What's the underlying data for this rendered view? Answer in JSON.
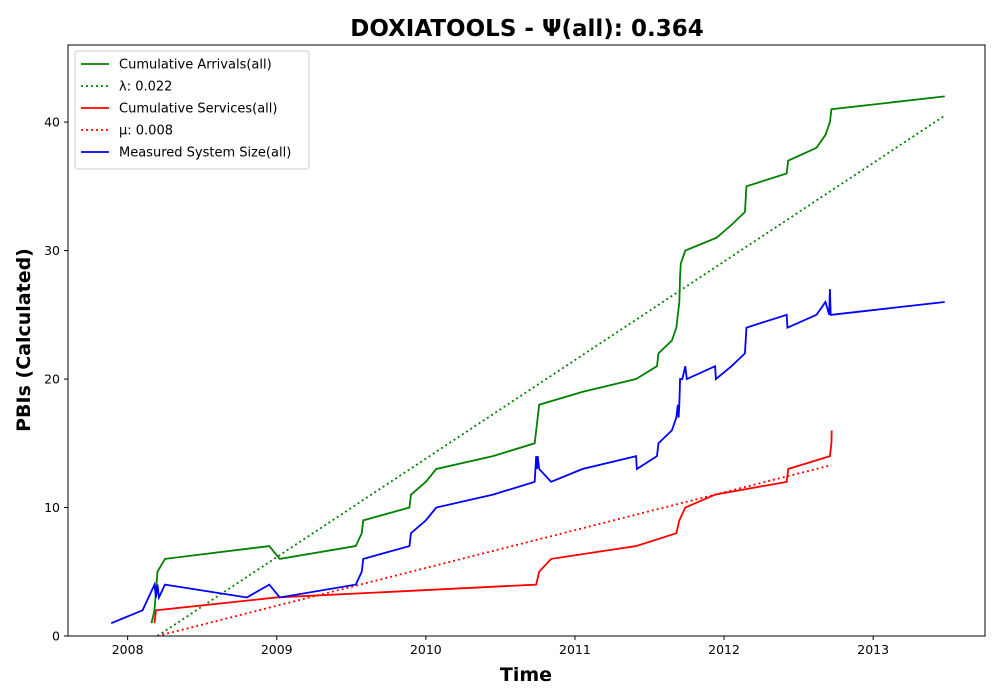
{
  "chart_data": {
    "type": "line",
    "title": "DOXIATOOLS -  Ψ(all): 0.364",
    "xlabel": "Time",
    "ylabel": "PBIs (Calculated)",
    "xlim": [
      2007.6,
      2013.75
    ],
    "ylim": [
      0,
      46
    ],
    "x_ticks": [
      2008,
      2009,
      2010,
      2011,
      2012,
      2013
    ],
    "y_ticks": [
      0,
      10,
      20,
      30,
      40
    ],
    "grid": false,
    "legend_position": "top-left",
    "series": [
      {
        "name": "Cumulative Arrivals(all)",
        "color": "#008000",
        "style": "solid",
        "points": [
          [
            2008.16,
            1
          ],
          [
            2008.18,
            2
          ],
          [
            2008.2,
            5
          ],
          [
            2008.25,
            6
          ],
          [
            2008.95,
            7
          ],
          [
            2009.02,
            6
          ],
          [
            2009.53,
            7
          ],
          [
            2009.57,
            8
          ],
          [
            2009.58,
            9
          ],
          [
            2009.89,
            10
          ],
          [
            2009.9,
            11
          ],
          [
            2010.0,
            12
          ],
          [
            2010.07,
            13
          ],
          [
            2010.45,
            14
          ],
          [
            2010.73,
            15
          ],
          [
            2010.74,
            16
          ],
          [
            2010.75,
            17
          ],
          [
            2010.76,
            18
          ],
          [
            2011.05,
            19
          ],
          [
            2011.41,
            20
          ],
          [
            2011.55,
            21
          ],
          [
            2011.56,
            22
          ],
          [
            2011.65,
            23
          ],
          [
            2011.68,
            24
          ],
          [
            2011.69,
            25
          ],
          [
            2011.7,
            26
          ],
          [
            2011.705,
            28
          ],
          [
            2011.71,
            29
          ],
          [
            2011.74,
            30
          ],
          [
            2011.95,
            31
          ],
          [
            2012.05,
            32
          ],
          [
            2012.14,
            33
          ],
          [
            2012.15,
            35
          ],
          [
            2012.42,
            36
          ],
          [
            2012.43,
            37
          ],
          [
            2012.62,
            38
          ],
          [
            2012.68,
            39
          ],
          [
            2012.71,
            40
          ],
          [
            2012.72,
            41
          ],
          [
            2013.48,
            42
          ]
        ]
      },
      {
        "name": "λ: 0.022",
        "color": "#008000",
        "style": "dotted",
        "points": [
          [
            2008.2,
            0
          ],
          [
            2013.48,
            40.5
          ]
        ]
      },
      {
        "name": "Cumulative Services(all)",
        "color": "#ff0000",
        "style": "solid",
        "points": [
          [
            2008.18,
            1
          ],
          [
            2008.19,
            2
          ],
          [
            2009.0,
            3
          ],
          [
            2010.74,
            4
          ],
          [
            2010.76,
            5
          ],
          [
            2010.84,
            6
          ],
          [
            2011.41,
            7
          ],
          [
            2011.68,
            8
          ],
          [
            2011.7,
            9
          ],
          [
            2011.74,
            10
          ],
          [
            2011.94,
            11
          ],
          [
            2012.42,
            12
          ],
          [
            2012.43,
            13
          ],
          [
            2012.71,
            14
          ],
          [
            2012.72,
            15
          ],
          [
            2012.722,
            16
          ]
        ]
      },
      {
        "name": "μ: 0.008",
        "color": "#ff0000",
        "style": "dotted",
        "points": [
          [
            2008.2,
            0
          ],
          [
            2012.72,
            13.3
          ]
        ]
      },
      {
        "name": "Measured System Size(all)",
        "color": "#0000ff",
        "style": "solid",
        "points": [
          [
            2007.89,
            1
          ],
          [
            2008.1,
            2
          ],
          [
            2008.18,
            4
          ],
          [
            2008.19,
            3
          ],
          [
            2008.2,
            4
          ],
          [
            2008.21,
            3
          ],
          [
            2008.25,
            4
          ],
          [
            2008.8,
            3
          ],
          [
            2008.95,
            4
          ],
          [
            2009.02,
            3
          ],
          [
            2009.53,
            4
          ],
          [
            2009.57,
            5
          ],
          [
            2009.58,
            6
          ],
          [
            2009.89,
            7
          ],
          [
            2009.9,
            8
          ],
          [
            2010.0,
            9
          ],
          [
            2010.07,
            10
          ],
          [
            2010.45,
            11
          ],
          [
            2010.73,
            12
          ],
          [
            2010.74,
            14
          ],
          [
            2010.745,
            13
          ],
          [
            2010.75,
            14
          ],
          [
            2010.76,
            13
          ],
          [
            2010.84,
            12
          ],
          [
            2011.05,
            13
          ],
          [
            2011.41,
            14
          ],
          [
            2011.415,
            13
          ],
          [
            2011.55,
            14
          ],
          [
            2011.56,
            15
          ],
          [
            2011.65,
            16
          ],
          [
            2011.68,
            17
          ],
          [
            2011.69,
            18
          ],
          [
            2011.695,
            17
          ],
          [
            2011.7,
            18
          ],
          [
            2011.705,
            20
          ],
          [
            2011.72,
            20
          ],
          [
            2011.74,
            21
          ],
          [
            2011.75,
            20
          ],
          [
            2011.94,
            21
          ],
          [
            2011.945,
            20
          ],
          [
            2012.05,
            21
          ],
          [
            2012.14,
            22
          ],
          [
            2012.15,
            24
          ],
          [
            2012.42,
            25
          ],
          [
            2012.425,
            24
          ],
          [
            2012.62,
            25
          ],
          [
            2012.68,
            26
          ],
          [
            2012.705,
            25
          ],
          [
            2012.71,
            27
          ],
          [
            2012.715,
            25
          ],
          [
            2012.72,
            25
          ],
          [
            2013.48,
            26
          ]
        ]
      }
    ]
  }
}
